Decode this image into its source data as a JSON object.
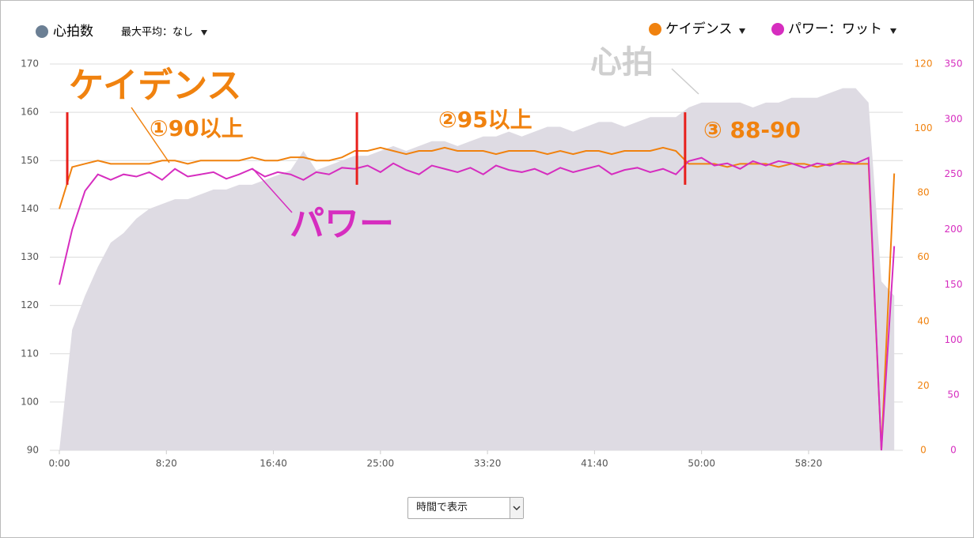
{
  "chart_data": {
    "type": "multi-axis-line",
    "legend_extra": "最大平均：なし",
    "x": [
      0,
      60,
      120,
      180,
      240,
      300,
      360,
      420,
      480,
      540,
      600,
      660,
      720,
      780,
      840,
      900,
      960,
      1020,
      1080,
      1140,
      1200,
      1260,
      1320,
      1380,
      1440,
      1500,
      1560,
      1620,
      1680,
      1740,
      1800,
      1860,
      1920,
      1980,
      2040,
      2100,
      2160,
      2220,
      2280,
      2340,
      2400,
      2460,
      2520,
      2580,
      2640,
      2700,
      2760,
      2820,
      2880,
      2940,
      3000,
      3060,
      3120,
      3180,
      3240,
      3300,
      3360,
      3420,
      3480,
      3540,
      3600,
      3660,
      3720,
      3780,
      3840,
      3900
    ],
    "xlim": [
      0,
      3940
    ],
    "xticks": [
      {
        "value": 0,
        "label": "0:00"
      },
      {
        "value": 500,
        "label": "8:20"
      },
      {
        "value": 1000,
        "label": "16:40"
      },
      {
        "value": 1500,
        "label": "25:00"
      },
      {
        "value": 2000,
        "label": "33:20"
      },
      {
        "value": 2500,
        "label": "41:40"
      },
      {
        "value": 3000,
        "label": "50:00"
      },
      {
        "value": 3500,
        "label": "58:20"
      }
    ],
    "ylim": [
      90,
      170
    ],
    "yticks": [
      90,
      100,
      110,
      120,
      130,
      140,
      150,
      160,
      170
    ],
    "y2lim": [
      0,
      120
    ],
    "y2ticks": [
      0,
      20,
      40,
      60,
      80,
      100,
      120
    ],
    "y3lim": [
      0,
      350
    ],
    "y3ticks": [
      0,
      50,
      100,
      150,
      200,
      250,
      300,
      350
    ],
    "grid": true,
    "series": [
      {
        "name": "心拍数",
        "kind": "area",
        "axis": "y",
        "color": "#6b7f94",
        "fill": "#dedbe3",
        "values": [
          90,
          115,
          122,
          128,
          133,
          135,
          138,
          140,
          141,
          142,
          142,
          143,
          144,
          144,
          145,
          145,
          146,
          147,
          148,
          152,
          148,
          149,
          150,
          151,
          151,
          152,
          153,
          152,
          153,
          154,
          154,
          153,
          154,
          155,
          155,
          156,
          155,
          156,
          157,
          157,
          156,
          157,
          158,
          158,
          157,
          158,
          159,
          159,
          159,
          161,
          162,
          162,
          162,
          162,
          161,
          162,
          162,
          163,
          163,
          163,
          164,
          165,
          165,
          162,
          125,
          122
        ]
      },
      {
        "name": "ケイデンス",
        "kind": "line",
        "axis": "y2",
        "color": "#f0820f",
        "values": [
          75,
          88,
          89,
          90,
          89,
          89,
          89,
          89,
          90,
          90,
          89,
          90,
          90,
          90,
          90,
          91,
          90,
          90,
          91,
          91,
          90,
          90,
          91,
          93,
          93,
          94,
          93,
          92,
          93,
          93,
          94,
          93,
          93,
          93,
          92,
          93,
          93,
          93,
          92,
          93,
          92,
          93,
          93,
          92,
          93,
          93,
          93,
          94,
          93,
          89,
          89,
          89,
          88,
          89,
          89,
          89,
          88,
          89,
          89,
          88,
          89,
          89,
          89,
          89,
          0,
          86
        ]
      },
      {
        "name": "パワー：ワット",
        "kind": "line",
        "axis": "y3",
        "color": "#d62dbf",
        "values": [
          150,
          200,
          235,
          250,
          245,
          250,
          248,
          252,
          245,
          255,
          248,
          250,
          252,
          246,
          250,
          255,
          248,
          252,
          250,
          245,
          252,
          250,
          256,
          255,
          258,
          252,
          260,
          254,
          250,
          258,
          255,
          252,
          256,
          250,
          258,
          254,
          252,
          255,
          250,
          256,
          252,
          255,
          258,
          250,
          254,
          256,
          252,
          255,
          250,
          262,
          265,
          258,
          260,
          255,
          262,
          258,
          262,
          260,
          256,
          260,
          258,
          262,
          260,
          265,
          0,
          185
        ]
      }
    ],
    "markers": [
      37,
      1390,
      2923
    ],
    "marker_range": [
      145,
      160
    ],
    "marker_color": "#e8201c",
    "annotations": [
      "ケイデンス",
      "①90以上",
      "②95以上",
      "③ 88-90",
      "パワー",
      "心拍"
    ],
    "view_select": "時間で表示"
  }
}
